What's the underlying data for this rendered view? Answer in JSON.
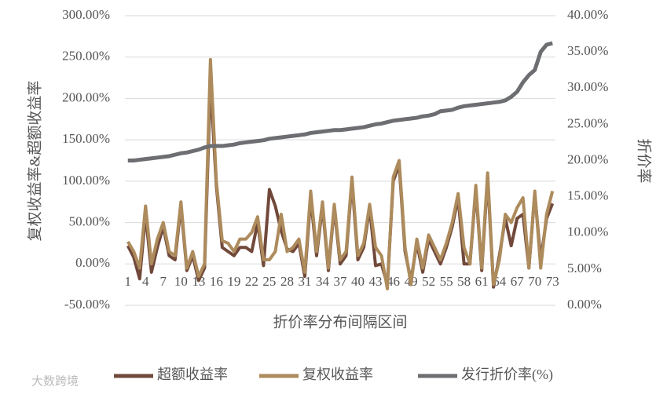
{
  "chart_data": {
    "type": "line",
    "xlabel": "折价率分布间隔区间",
    "ylabel": "复权收益率&超额收益率",
    "y2label": "折价率",
    "watermark": "大数跨境",
    "categories": [
      1,
      null,
      null,
      4,
      null,
      null,
      7,
      null,
      null,
      10,
      null,
      null,
      13,
      null,
      null,
      16,
      null,
      null,
      19,
      null,
      null,
      22,
      null,
      null,
      25,
      null,
      null,
      28,
      null,
      null,
      31,
      null,
      null,
      34,
      null,
      null,
      37,
      null,
      null,
      40,
      null,
      null,
      43,
      null,
      null,
      46,
      null,
      null,
      49,
      null,
      null,
      52,
      null,
      null,
      55,
      null,
      null,
      58,
      null,
      null,
      61,
      null,
      null,
      64,
      null,
      null,
      67,
      null,
      null,
      70,
      null,
      null,
      73
    ],
    "ylim": [
      -50,
      300
    ],
    "yticks": [
      {
        "value": -50,
        "label": "-50.00%"
      },
      {
        "value": 0,
        "label": "0.00%"
      },
      {
        "value": 50,
        "label": "50.00%"
      },
      {
        "value": 100,
        "label": "100.00%"
      },
      {
        "value": 150,
        "label": "150.00%"
      },
      {
        "value": 200,
        "label": "200.00%"
      },
      {
        "value": 250,
        "label": "250.00%"
      },
      {
        "value": 300,
        "label": "300.00%"
      }
    ],
    "y2lim": [
      0,
      40
    ],
    "y2ticks": [
      {
        "value": 0,
        "label": "0.00%"
      },
      {
        "value": 5,
        "label": "5.00%"
      },
      {
        "value": 10,
        "label": "10.00%"
      },
      {
        "value": 15,
        "label": "15.00%"
      },
      {
        "value": 20,
        "label": "20.00%"
      },
      {
        "value": 25,
        "label": "25.00%"
      },
      {
        "value": 30,
        "label": "30.00%"
      },
      {
        "value": 35,
        "label": "35.00%"
      },
      {
        "value": 40,
        "label": "40.00%"
      }
    ],
    "grid": true,
    "legend": "bottom",
    "series": [
      {
        "name": "超额收益率",
        "color": "#71493b",
        "values": [
          22,
          8,
          -18,
          60,
          -10,
          20,
          45,
          10,
          5,
          70,
          -8,
          10,
          -20,
          -5,
          220,
          95,
          20,
          15,
          10,
          20,
          20,
          15,
          50,
          -2,
          90,
          70,
          40,
          18,
          15,
          25,
          -15,
          80,
          10,
          70,
          -8,
          68,
          0,
          10,
          100,
          5,
          20,
          68,
          -2,
          0,
          -25,
          100,
          120,
          15,
          -20,
          25,
          -10,
          30,
          15,
          0,
          20,
          45,
          80,
          0,
          0,
          90,
          -8,
          105,
          -28,
          10,
          55,
          22,
          55,
          60,
          -5,
          85,
          5,
          55,
          73
        ]
      },
      {
        "name": "复权收益率",
        "color": "#ad8b5c",
        "values": [
          27,
          15,
          -5,
          70,
          0,
          30,
          50,
          15,
          10,
          75,
          -5,
          15,
          -15,
          0,
          247,
          100,
          28,
          25,
          15,
          30,
          30,
          38,
          57,
          5,
          5,
          15,
          60,
          15,
          20,
          30,
          -10,
          88,
          15,
          75,
          -5,
          72,
          5,
          15,
          105,
          10,
          25,
          72,
          20,
          10,
          -30,
          105,
          125,
          20,
          -25,
          30,
          -5,
          35,
          20,
          5,
          25,
          50,
          85,
          20,
          0,
          95,
          -5,
          110,
          -25,
          5,
          60,
          50,
          68,
          80,
          -5,
          88,
          -5,
          60,
          88
        ]
      },
      {
        "name": "发行折价率(%)",
        "color": "#6d6e71",
        "axis": "y2",
        "values": [
          20.0,
          20.0,
          20.1,
          20.2,
          20.3,
          20.4,
          20.5,
          20.6,
          20.8,
          21.0,
          21.1,
          21.3,
          21.5,
          21.8,
          22.0,
          22.0,
          22.0,
          22.1,
          22.2,
          22.4,
          22.5,
          22.6,
          22.7,
          22.8,
          23.0,
          23.1,
          23.2,
          23.3,
          23.4,
          23.5,
          23.6,
          23.8,
          23.9,
          24.0,
          24.1,
          24.2,
          24.2,
          24.3,
          24.4,
          24.5,
          24.6,
          24.8,
          25.0,
          25.1,
          25.3,
          25.5,
          25.6,
          25.7,
          25.8,
          25.9,
          26.1,
          26.2,
          26.4,
          26.8,
          26.9,
          27.0,
          27.3,
          27.5,
          27.6,
          27.7,
          27.8,
          27.9,
          28.0,
          28.1,
          28.3,
          28.8,
          29.5,
          30.8,
          31.8,
          32.5,
          35.0,
          36.0,
          36.2
        ]
      }
    ]
  }
}
